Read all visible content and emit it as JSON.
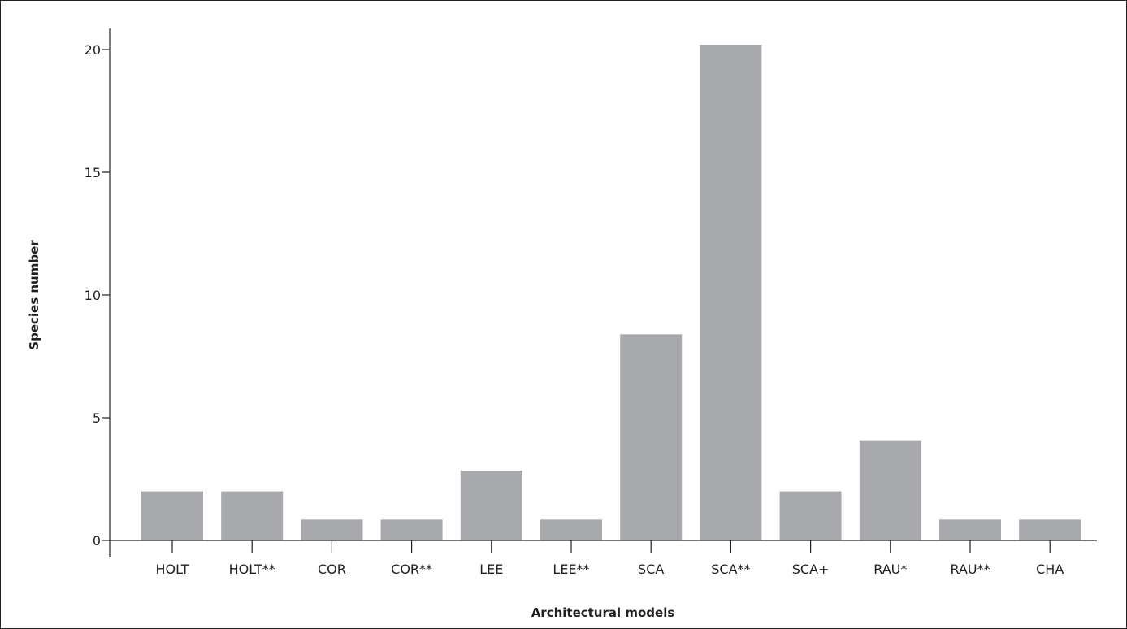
{
  "chart_data": {
    "type": "bar",
    "title": "",
    "xlabel": "Architectural models",
    "ylabel": "Species number",
    "categories": [
      "HOLT",
      "HOLT**",
      "COR",
      "COR**",
      "LEE",
      "LEE**",
      "SCA",
      "SCA**",
      "SCA+",
      "RAU*",
      "RAU**",
      "CHA"
    ],
    "values": [
      2,
      2,
      0.85,
      0.85,
      2.85,
      0.85,
      8.4,
      20.2,
      2,
      4.05,
      0.85,
      0.85
    ],
    "ylim": [
      0,
      21
    ],
    "yticks": [
      0,
      5,
      10,
      15,
      20
    ],
    "grid": false,
    "colors": {
      "bar": "#a7a9ac",
      "axis": "#231f20"
    }
  }
}
